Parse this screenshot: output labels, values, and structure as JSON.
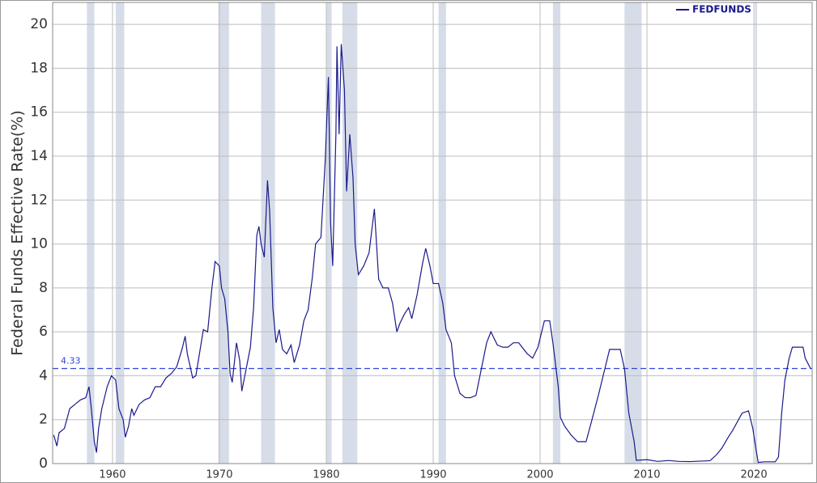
{
  "chart_data": {
    "type": "line",
    "y_label": "Federal Funds Effective Rate(%)",
    "xlim": [
      1954.4,
      2025.45
    ],
    "ylim": [
      0,
      21
    ],
    "xticks": [
      1960,
      1970,
      1980,
      1990,
      2000,
      2010,
      2020
    ],
    "yticks": [
      0,
      2,
      4,
      6,
      8,
      10,
      12,
      14,
      16,
      18,
      20
    ],
    "grid": true,
    "legend": "top-right",
    "recession_color": "#d6dde8",
    "recessions": [
      [
        1957.6,
        1958.3
      ],
      [
        1960.3,
        1961.1
      ],
      [
        1969.9,
        1970.9
      ],
      [
        1973.9,
        1975.2
      ],
      [
        1980.0,
        1980.5
      ],
      [
        1981.5,
        1982.9
      ],
      [
        1990.5,
        1991.2
      ],
      [
        2001.2,
        2001.9
      ],
      [
        2007.9,
        2009.5
      ],
      [
        2020.1,
        2020.3
      ]
    ],
    "reference_line": {
      "value": 4.33,
      "color": "#3344dd"
    },
    "x": [
      1954.5,
      1954.8,
      1955,
      1955.5,
      1956,
      1956.5,
      1957,
      1957.5,
      1957.8,
      1958,
      1958.3,
      1958.5,
      1958.7,
      1959,
      1959.5,
      1959.9,
      1960.3,
      1960.6,
      1961,
      1961.2,
      1961.5,
      1961.8,
      1962,
      1962.5,
      1963,
      1963.5,
      1964,
      1964.5,
      1965,
      1965.5,
      1966,
      1966.5,
      1966.8,
      1967,
      1967.5,
      1967.8,
      1968,
      1968.5,
      1968.9,
      1969.3,
      1969.6,
      1970,
      1970.2,
      1970.5,
      1970.8,
      1971,
      1971.2,
      1971.6,
      1971.9,
      1972.1,
      1972.5,
      1972.9,
      1973.2,
      1973.5,
      1973.7,
      1973.9,
      1974.2,
      1974.5,
      1974.7,
      1975,
      1975.3,
      1975.6,
      1975.9,
      1976.3,
      1976.7,
      1977,
      1977.5,
      1977.9,
      1978.3,
      1978.7,
      1979,
      1979.5,
      1979.9,
      1980.2,
      1980.4,
      1980.6,
      1980.9,
      1981,
      1981.2,
      1981.4,
      1981.7,
      1981.9,
      1982.2,
      1982.5,
      1982.7,
      1983,
      1983.5,
      1984,
      1984.5,
      1984.9,
      1985.3,
      1985.8,
      1986.2,
      1986.6,
      1986.9,
      1987.3,
      1987.7,
      1988,
      1988.5,
      1989,
      1989.3,
      1989.7,
      1990,
      1990.5,
      1990.9,
      1991.2,
      1991.7,
      1992,
      1992.5,
      1993,
      1993.5,
      1994,
      1994.5,
      1995,
      1995.4,
      1996,
      1996.5,
      1997,
      1997.5,
      1998,
      1998.8,
      1999.3,
      1999.8,
      2000.4,
      2000.9,
      2001.2,
      2001.7,
      2001.9,
      2002.3,
      2002.9,
      2003.5,
      2004.3,
      2004.8,
      2005.5,
      2006.5,
      2007.5,
      2007.9,
      2008.3,
      2008.8,
      2009,
      2010,
      2011,
      2012,
      2013,
      2014,
      2015.9,
      2016.5,
      2017,
      2017.6,
      2018,
      2018.9,
      2019.5,
      2019.9,
      2020.2,
      2020.4,
      2021,
      2022,
      2022.3,
      2022.6,
      2022.9,
      2023.3,
      2023.6,
      2024.6,
      2024.8,
      2025.3
    ],
    "series": [
      {
        "name": "FEDFUNDS",
        "color": "#1a1a8c",
        "values": [
          1.3,
          0.8,
          1.4,
          1.6,
          2.5,
          2.7,
          2.9,
          3.0,
          3.5,
          2.6,
          1.0,
          0.5,
          1.6,
          2.5,
          3.5,
          4.0,
          3.8,
          2.5,
          2.0,
          1.2,
          1.7,
          2.5,
          2.2,
          2.7,
          2.9,
          3.0,
          3.5,
          3.5,
          3.9,
          4.1,
          4.4,
          5.2,
          5.8,
          5.0,
          3.9,
          4.0,
          4.6,
          6.1,
          6.0,
          8.0,
          9.2,
          9.0,
          8.0,
          7.5,
          6.0,
          4.1,
          3.7,
          5.5,
          4.7,
          3.3,
          4.3,
          5.3,
          7.1,
          10.4,
          10.8,
          10.0,
          9.4,
          12.9,
          11.5,
          7.1,
          5.5,
          6.1,
          5.2,
          5.0,
          5.4,
          4.6,
          5.4,
          6.5,
          7.0,
          8.5,
          10.0,
          10.3,
          13.8,
          17.6,
          11.0,
          9.0,
          15.0,
          19.0,
          15.0,
          19.1,
          17.0,
          12.4,
          15.0,
          13.0,
          10.0,
          8.6,
          9.0,
          9.6,
          11.6,
          8.4,
          8.0,
          8.0,
          7.3,
          6.0,
          6.4,
          6.8,
          7.1,
          6.6,
          7.7,
          9.1,
          9.8,
          9.0,
          8.2,
          8.2,
          7.3,
          6.1,
          5.5,
          4.0,
          3.2,
          3.0,
          3.0,
          3.1,
          4.3,
          5.5,
          6.0,
          5.4,
          5.3,
          5.3,
          5.5,
          5.5,
          5.0,
          4.8,
          5.3,
          6.5,
          6.5,
          5.5,
          3.5,
          2.1,
          1.7,
          1.3,
          1.0,
          1.0,
          1.9,
          3.2,
          5.2,
          5.2,
          4.3,
          2.3,
          1.0,
          0.15,
          0.18,
          0.1,
          0.14,
          0.1,
          0.09,
          0.13,
          0.4,
          0.7,
          1.2,
          1.5,
          2.3,
          2.4,
          1.6,
          0.65,
          0.05,
          0.08,
          0.08,
          0.3,
          2.3,
          3.8,
          4.8,
          5.3,
          5.3,
          4.8,
          4.33
        ]
      }
    ]
  }
}
